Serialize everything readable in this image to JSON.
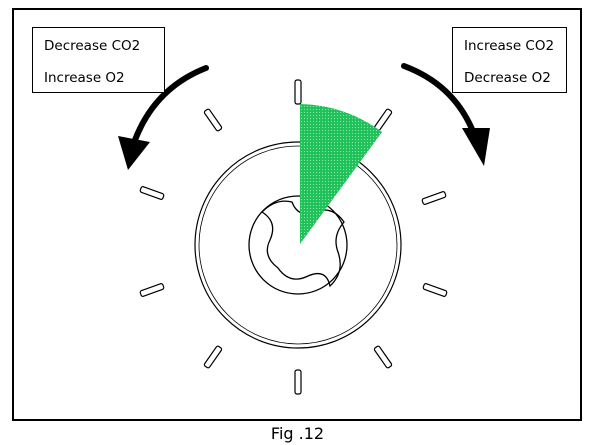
{
  "left_box": {
    "line1": "Decrease CO2",
    "line2": "Increase O2"
  },
  "right_box": {
    "line1": "Increase CO2",
    "line2": "Decrease O2"
  },
  "caption": "Fig .12",
  "colors": {
    "sector": "#1fc15a",
    "stroke": "#000000"
  },
  "icons": {
    "left_arrow": "curved-arrow-counterclockwise-icon",
    "right_arrow": "curved-arrow-clockwise-icon"
  }
}
